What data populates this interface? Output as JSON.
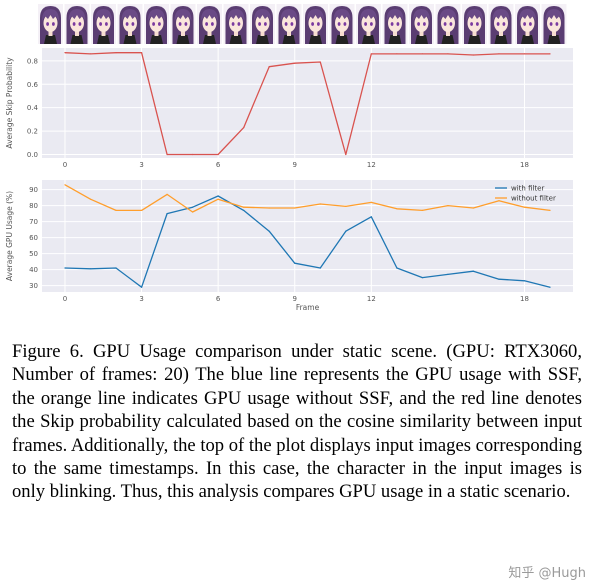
{
  "frame_strip": {
    "count": 20
  },
  "chart_data": [
    {
      "type": "line",
      "ylabel": "Average Skip Probability",
      "xlabel": "",
      "xlim": [
        -0.9,
        19.9
      ],
      "ylim": [
        -0.03,
        0.91
      ],
      "x_ticks": [
        0,
        3,
        6,
        9,
        12,
        18
      ],
      "y_ticks": [
        0.0,
        0.2,
        0.4,
        0.6,
        0.8
      ],
      "x_tick_labels": [
        "0",
        "3",
        "6",
        "9",
        "12",
        "18"
      ],
      "y_tick_labels": [
        "0.0",
        "0.2",
        "0.4",
        "0.6",
        "0.8"
      ],
      "grid": true,
      "series": [
        {
          "color": "#d9534f",
          "x": [
            0,
            1,
            2,
            3,
            4,
            5,
            6,
            7,
            8,
            9,
            10,
            11,
            12,
            13,
            14,
            15,
            16,
            17,
            18,
            19
          ],
          "values": [
            0.87,
            0.86,
            0.87,
            0.87,
            0.0,
            0.0,
            0.0,
            0.23,
            0.75,
            0.78,
            0.79,
            0.0,
            0.86,
            0.86,
            0.86,
            0.86,
            0.85,
            0.86,
            0.86,
            0.86
          ]
        }
      ]
    },
    {
      "type": "line",
      "ylabel": "Average GPU Usage (%)",
      "xlabel": "Frame",
      "xlim": [
        -0.9,
        19.9
      ],
      "ylim": [
        26,
        96
      ],
      "x_ticks": [
        0,
        3,
        6,
        9,
        12,
        18
      ],
      "y_ticks": [
        30,
        40,
        50,
        60,
        70,
        80,
        90
      ],
      "x_tick_labels": [
        "0",
        "3",
        "6",
        "9",
        "12",
        "18"
      ],
      "y_tick_labels": [
        "30",
        "40",
        "50",
        "60",
        "70",
        "80",
        "90"
      ],
      "grid": true,
      "legend": "top-right",
      "series": [
        {
          "name": "with filter",
          "color": "#1f77b4",
          "x": [
            0,
            1,
            2,
            3,
            4,
            5,
            6,
            7,
            8,
            9,
            10,
            11,
            12,
            13,
            14,
            15,
            16,
            17,
            18,
            19
          ],
          "values": [
            41,
            40.5,
            41,
            29,
            75,
            79,
            86,
            77,
            64,
            44,
            41,
            64,
            73,
            41,
            35,
            37,
            39,
            34,
            33,
            29
          ]
        },
        {
          "name": "without filter",
          "color": "#ff9e2c",
          "x": [
            0,
            1,
            2,
            3,
            4,
            5,
            6,
            7,
            8,
            9,
            10,
            11,
            12,
            13,
            14,
            15,
            16,
            17,
            18,
            19
          ],
          "values": [
            93,
            84,
            77,
            77,
            87,
            76,
            84,
            79,
            78.5,
            78.5,
            81,
            79.5,
            82,
            78,
            77,
            80,
            78.5,
            83,
            79,
            77
          ]
        }
      ]
    }
  ],
  "caption": "Figure 6.  GPU Usage comparison under static scene.  (GPU: RTX3060, Number of frames: 20) The blue line represents the GPU usage with SSF, the orange line indicates GPU usage without SSF, and the red line denotes the Skip probability calculated based on the cosine similarity between input frames. Additionally, the top of the plot displays input images corresponding to the same timestamps. In this case, the character in the input images is only blinking. Thus, this analysis compares GPU usage in a static scenario.",
  "watermark": "知乎 @Hugh"
}
